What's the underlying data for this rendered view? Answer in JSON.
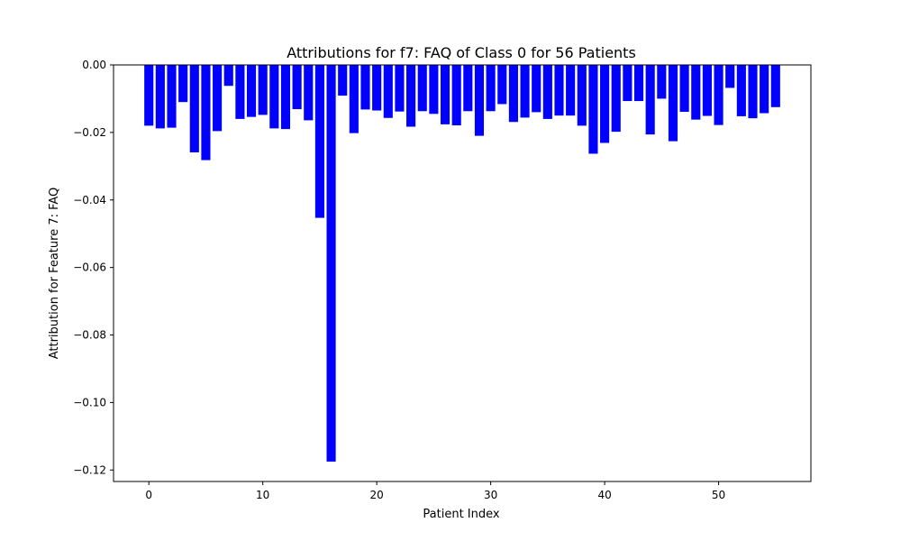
{
  "chart_data": {
    "type": "bar",
    "title": "Attributions for f7: FAQ of Class 0 for 56 Patients",
    "xlabel": "Patient Index",
    "ylabel": "Attribution for Feature 7: FAQ",
    "x": [
      0,
      1,
      2,
      3,
      4,
      5,
      6,
      7,
      8,
      9,
      10,
      11,
      12,
      13,
      14,
      15,
      16,
      17,
      18,
      19,
      20,
      21,
      22,
      23,
      24,
      25,
      26,
      27,
      28,
      29,
      30,
      31,
      32,
      33,
      34,
      35,
      36,
      37,
      38,
      39,
      40,
      41,
      42,
      43,
      44,
      45,
      46,
      47,
      48,
      49,
      50,
      51,
      52,
      53,
      54,
      55
    ],
    "values": [
      -0.018,
      -0.0188,
      -0.0186,
      -0.011,
      -0.0259,
      -0.0282,
      -0.0196,
      -0.0062,
      -0.016,
      -0.0154,
      -0.0148,
      -0.0188,
      -0.019,
      -0.0131,
      -0.0164,
      -0.0453,
      -0.1175,
      -0.0091,
      -0.0202,
      -0.0132,
      -0.0135,
      -0.0157,
      -0.0138,
      -0.0183,
      -0.0137,
      -0.0145,
      -0.0176,
      -0.0179,
      -0.0137,
      -0.021,
      -0.0137,
      -0.0116,
      -0.0169,
      -0.0156,
      -0.014,
      -0.016,
      -0.015,
      -0.015,
      -0.018,
      -0.0263,
      -0.0231,
      -0.0198,
      -0.0107,
      -0.0107,
      -0.0206,
      -0.01,
      -0.0226,
      -0.0139,
      -0.0162,
      -0.0151,
      -0.0178,
      -0.0068,
      -0.0152,
      -0.0158,
      -0.0143,
      -0.0125
    ],
    "xlim": [
      -3.1,
      58.1
    ],
    "ylim": [
      -0.1234,
      0.0
    ],
    "xticks": [
      0,
      10,
      20,
      30,
      40,
      50
    ],
    "xtick_labels": [
      "0",
      "10",
      "20",
      "30",
      "40",
      "50"
    ],
    "yticks": [
      0.0,
      -0.02,
      -0.04,
      -0.06,
      -0.08,
      -0.1,
      -0.12
    ],
    "ytick_labels": [
      "0.00",
      "−0.02",
      "−0.04",
      "−0.06",
      "−0.08",
      "−0.10",
      "−0.12"
    ],
    "bar_color": "#0000ff",
    "grid": false
  }
}
